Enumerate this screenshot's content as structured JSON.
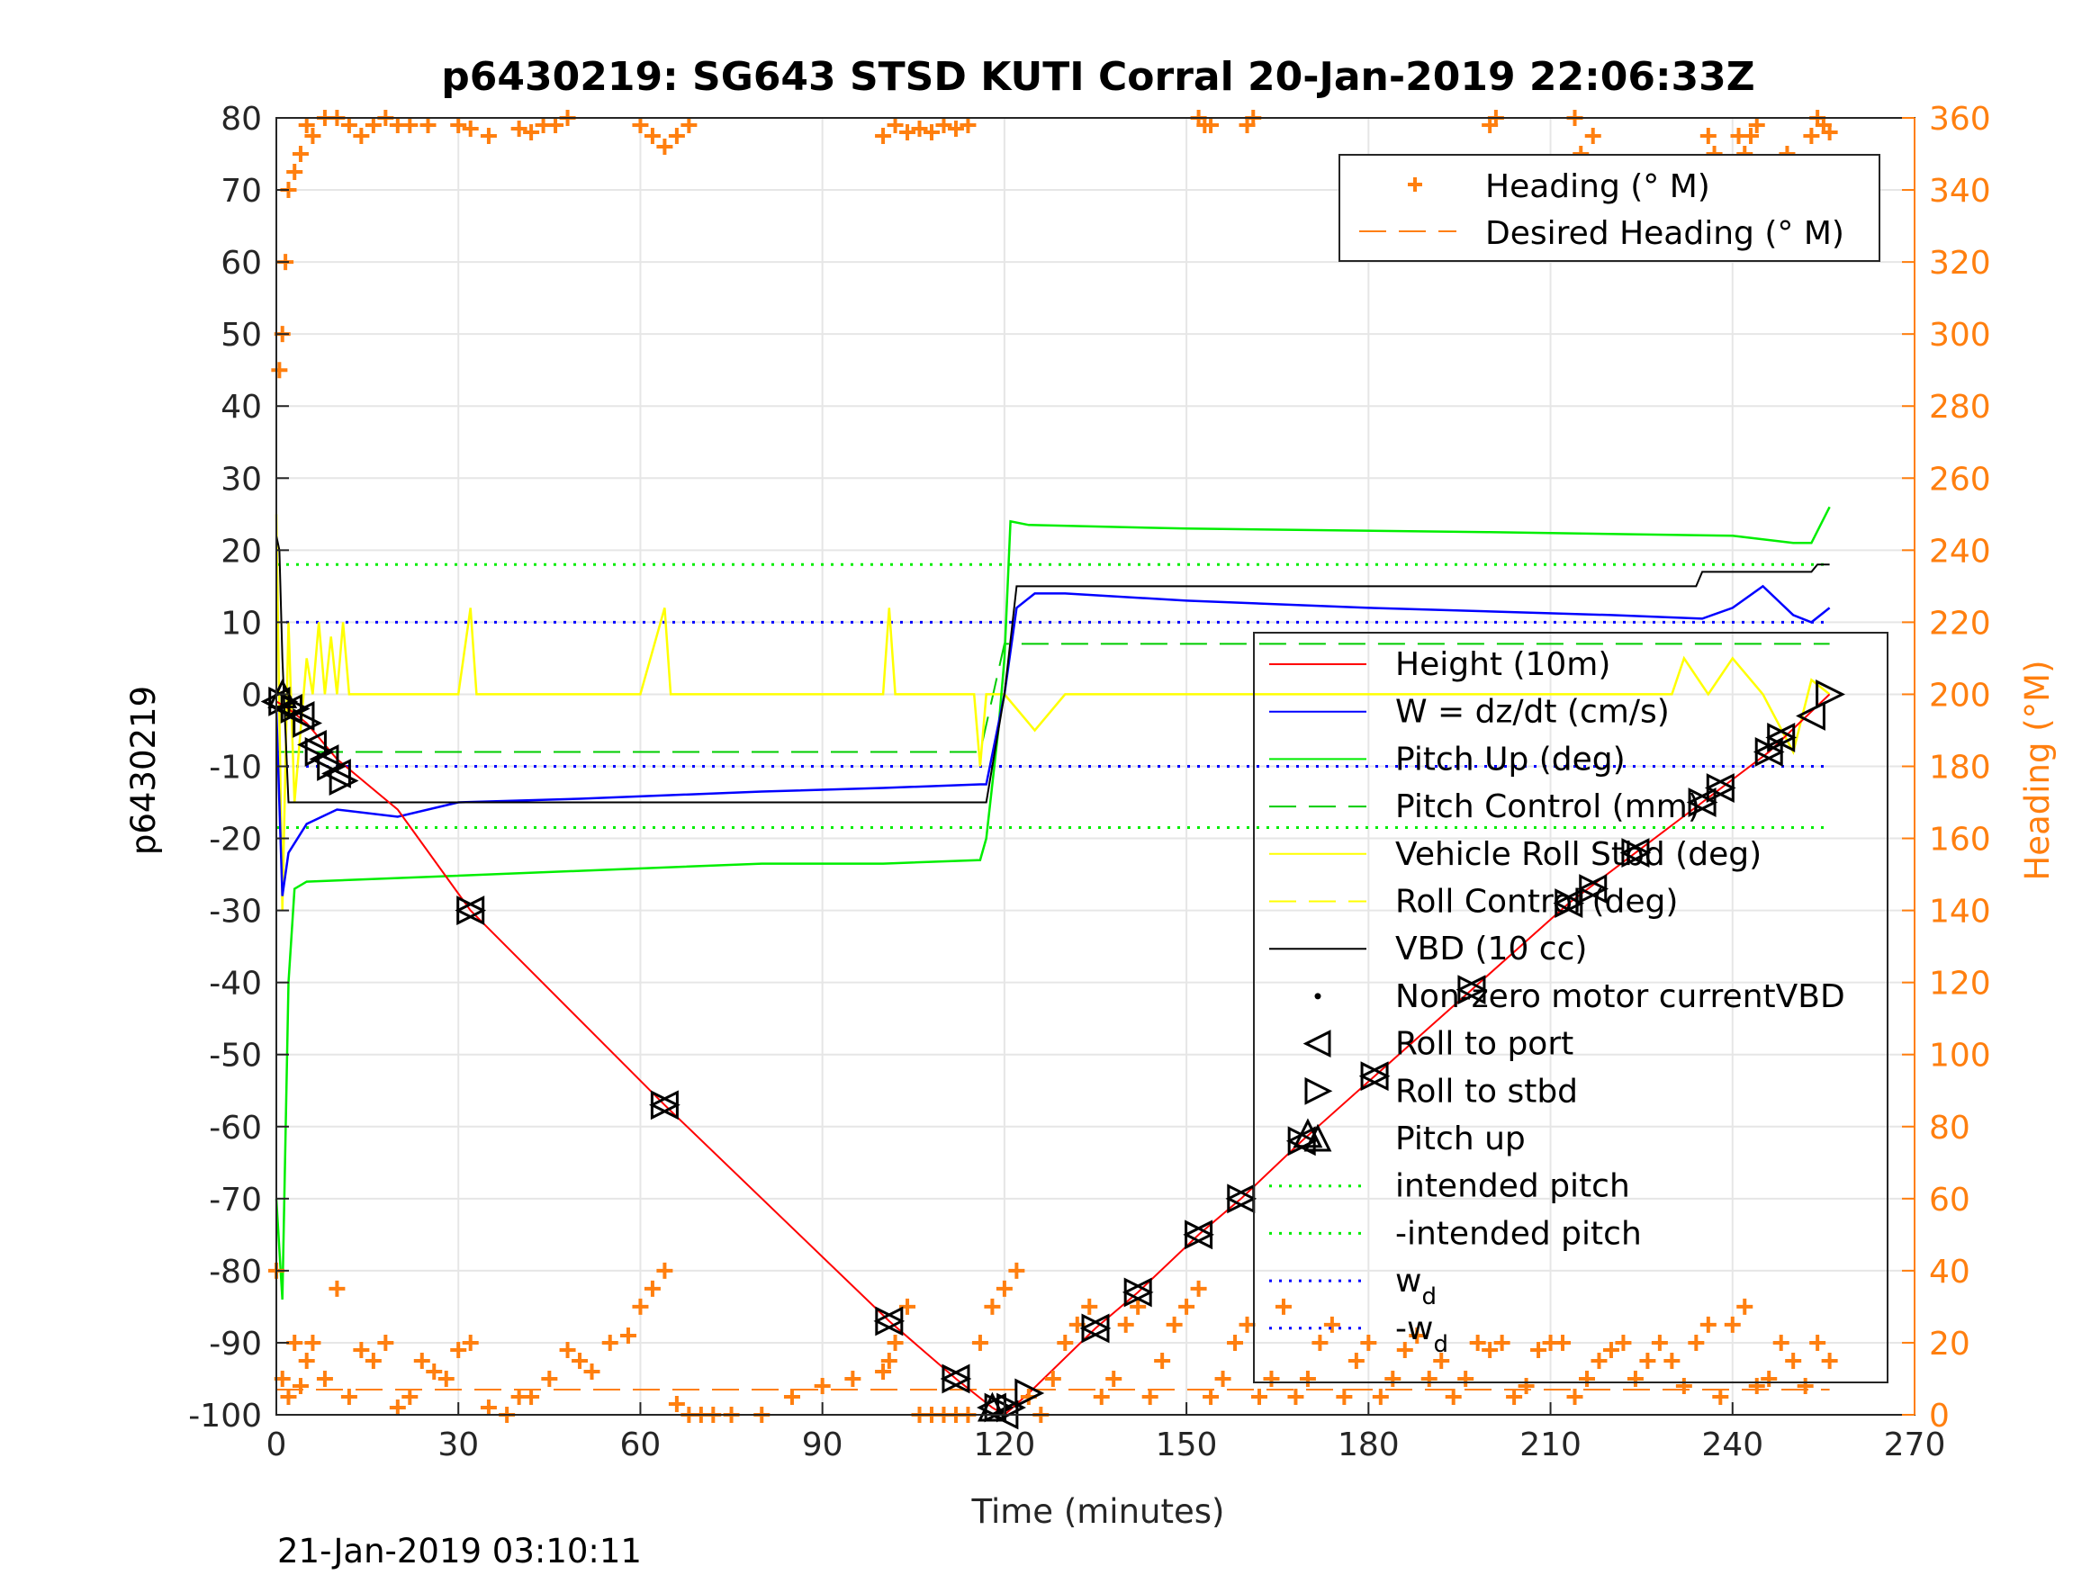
{
  "chart_data": {
    "type": "line",
    "title": "p6430219: SG643 STSD KUTI Corral 20-Jan-2019 22:06:33Z",
    "xlabel": "Time (minutes)",
    "ylabel_left": "p6430219",
    "ylabel_right": "Heading (°M)",
    "footer_timestamp": "21-Jan-2019 03:10:11",
    "xlim": [
      0,
      270
    ],
    "ylim_left": [
      -100,
      80
    ],
    "ylim_right": [
      0,
      360
    ],
    "x_ticks": [
      0,
      30,
      60,
      90,
      120,
      150,
      180,
      210,
      240,
      270
    ],
    "y_ticks_left": [
      80,
      70,
      60,
      50,
      40,
      30,
      20,
      10,
      0,
      -10,
      -20,
      -30,
      -40,
      -50,
      -60,
      -70,
      -80,
      -90,
      -100
    ],
    "y_ticks_right": [
      360,
      340,
      320,
      300,
      280,
      260,
      240,
      220,
      200,
      180,
      160,
      140,
      120,
      100,
      80,
      60,
      40,
      20,
      0
    ],
    "grid": true,
    "colors": {
      "height": "#ff0000",
      "w": "#0000ff",
      "pitch": "#00ee00",
      "pitch_control": "#00cc00",
      "roll": "#ffff00",
      "vbd": "#000000",
      "heading": "#ff7f0f",
      "intended_pitch": "#00ee00",
      "wd": "#0000ff"
    },
    "legend_heading": {
      "placement": "top-right",
      "entries": [
        "Heading (° M)",
        "Desired Heading (° M)"
      ]
    },
    "legend_main": {
      "placement": "lower-right",
      "entries": [
        "Height (10m)",
        "W = dz/dt (cm/s)",
        "Pitch Up (deg)",
        "Pitch Control (mm)",
        "Vehicle Roll Stbd (deg)",
        "Roll Control (deg)",
        "VBD (10 cc)",
        "Non-zero motor currentVBD",
        "Roll to port",
        "Roll to stbd",
        "Pitch up",
        "intended pitch",
        "-intended pitch",
        "w",
        "-w"
      ],
      "subscript_label": "d"
    },
    "series": [
      {
        "name": "Height (10m)",
        "x": [
          0,
          2,
          5,
          10,
          20,
          32,
          64,
          101,
          112,
          118,
          120,
          124,
          135,
          142,
          152,
          159,
          169,
          181,
          197,
          213,
          224,
          235,
          246,
          256
        ],
        "y": [
          -1,
          -2,
          -4,
          -9,
          -16,
          -30,
          -57,
          -87,
          -95,
          -99,
          -100,
          -97,
          -88,
          -83,
          -75,
          -70,
          -62,
          -53,
          -41,
          -29,
          -22,
          -15,
          -8,
          0
        ]
      },
      {
        "name": "W = dz/dt (cm/s)",
        "x": [
          0,
          1,
          2,
          5,
          10,
          20,
          30,
          50,
          80,
          100,
          116,
          117,
          120,
          122,
          125,
          130,
          150,
          180,
          200,
          220,
          235,
          240,
          245,
          250,
          253,
          256
        ],
        "y": [
          -2,
          -28,
          -22,
          -18,
          -16,
          -17,
          -15,
          -14.5,
          -13.5,
          -13,
          -12.5,
          -12.5,
          0,
          12,
          14,
          14,
          13,
          12,
          11.5,
          11,
          10.5,
          12,
          15,
          11,
          10,
          12
        ]
      },
      {
        "name": "Pitch Up (deg)",
        "x": [
          0,
          1,
          2,
          3,
          5,
          20,
          50,
          80,
          100,
          116,
          117,
          119,
          120,
          121,
          124,
          150,
          200,
          240,
          250,
          253,
          256
        ],
        "y": [
          -70,
          -84,
          -40,
          -27,
          -26,
          -25.5,
          -24.5,
          -23.5,
          -23.5,
          -23,
          -20,
          -5,
          5,
          24,
          23.5,
          23,
          22.5,
          22,
          21,
          21,
          26
        ]
      },
      {
        "name": "Pitch Control (mm)",
        "x": [
          0,
          116,
          120,
          124,
          256
        ],
        "y": [
          -8,
          -8,
          7,
          7,
          7
        ]
      },
      {
        "name": "Vehicle Roll Stbd (deg)",
        "x": [
          0,
          1,
          2,
          3,
          5,
          6,
          7,
          8,
          9,
          10,
          11,
          12,
          13,
          30,
          32,
          33,
          60,
          64,
          65,
          100,
          101,
          102,
          115,
          116,
          117,
          120,
          125,
          130,
          150,
          180,
          200,
          230,
          232,
          236,
          240,
          245,
          250,
          253,
          256
        ],
        "y": [
          25,
          -30,
          10,
          -15,
          5,
          0,
          10,
          0,
          8,
          0,
          10,
          0,
          0,
          0,
          12,
          0,
          0,
          12,
          0,
          0,
          12,
          0,
          0,
          -10,
          0,
          0,
          -5,
          0,
          0,
          0,
          0,
          0,
          5,
          0,
          5,
          0,
          -8,
          2,
          0
        ]
      },
      {
        "name": "VBD (10 cc)",
        "x": [
          0,
          0.5,
          1,
          2,
          116,
          117,
          120,
          122,
          234,
          235,
          253,
          254,
          256
        ],
        "y": [
          22,
          20,
          5,
          -15,
          -15,
          -15,
          0,
          15,
          15,
          17,
          17,
          18,
          18
        ]
      },
      {
        "name": "intended pitch",
        "x": [
          0,
          256
        ],
        "y": [
          18,
          18
        ]
      },
      {
        "name": "-intended pitch",
        "x": [
          0,
          256
        ],
        "y": [
          -18.5,
          -18.5
        ]
      },
      {
        "name": "wd",
        "x": [
          0,
          256
        ],
        "y": [
          10,
          10
        ]
      },
      {
        "name": "-wd",
        "x": [
          0,
          256
        ],
        "y": [
          -10,
          -10
        ]
      }
    ],
    "heading_series": {
      "name": "Heading (° M)",
      "axis": "right",
      "x": [
        0,
        1,
        2,
        3,
        4,
        5,
        6,
        8,
        10,
        12,
        14,
        16,
        18,
        20,
        22,
        24,
        26,
        28,
        30,
        32,
        35,
        38,
        40,
        42,
        45,
        48,
        50,
        52,
        55,
        58,
        60,
        62,
        64,
        66,
        68,
        70,
        72,
        75,
        80,
        85,
        90,
        95,
        100,
        101,
        102,
        104,
        106,
        108,
        110,
        112,
        114,
        116,
        118,
        120,
        122,
        124,
        126,
        128,
        130,
        132,
        134,
        136,
        138,
        140,
        142,
        144,
        146,
        148,
        150,
        152,
        154,
        156,
        158,
        160,
        162,
        164,
        166,
        168,
        170,
        172,
        174,
        176,
        178,
        180,
        182,
        184,
        186,
        188,
        190,
        192,
        194,
        196,
        198,
        200,
        202,
        204,
        206,
        208,
        210,
        212,
        214,
        216,
        218,
        220,
        222,
        224,
        226,
        228,
        230,
        232,
        234,
        236,
        238,
        240,
        242,
        244,
        246,
        248,
        250,
        252,
        254,
        256
      ],
      "y": [
        40,
        10,
        5,
        20,
        8,
        15,
        20,
        10,
        35,
        5,
        18,
        15,
        20,
        2,
        5,
        15,
        12,
        10,
        18,
        20,
        2,
        0,
        5,
        5,
        10,
        18,
        15,
        12,
        20,
        22,
        30,
        35,
        40,
        3,
        0,
        0,
        0,
        0,
        0,
        5,
        8,
        10,
        12,
        15,
        20,
        30,
        0,
        0,
        0,
        0,
        0,
        20,
        30,
        35,
        40,
        5,
        0,
        10,
        20,
        25,
        30,
        5,
        10,
        25,
        30,
        5,
        15,
        25,
        30,
        35,
        5,
        10,
        20,
        25,
        5,
        10,
        30,
        5,
        10,
        20,
        25,
        5,
        15,
        20,
        5,
        10,
        18,
        22,
        10,
        15,
        5,
        10,
        20,
        18,
        20,
        5,
        8,
        18,
        20,
        20,
        5,
        10,
        15,
        18,
        20,
        10,
        15,
        20,
        15,
        8,
        20,
        25,
        5,
        25,
        30,
        8,
        10,
        20,
        15,
        8,
        20,
        15
      ]
    },
    "heading_series_high": {
      "name": "Heading (° M)",
      "axis": "right",
      "x": [
        0.5,
        1,
        1.5,
        2,
        3,
        4,
        5,
        6,
        8,
        10,
        12,
        14,
        16,
        18,
        20,
        22,
        25,
        30,
        32,
        35,
        40,
        42,
        44,
        46,
        48,
        60,
        62,
        64,
        66,
        68,
        100,
        102,
        104,
        106,
        108,
        110,
        112,
        114,
        152,
        153,
        154,
        160,
        161,
        200,
        201,
        214,
        215,
        216,
        217,
        218,
        236,
        237,
        238,
        241,
        242,
        243,
        244,
        249,
        250,
        251,
        252,
        253,
        254,
        255,
        256
      ],
      "y": [
        290,
        300,
        320,
        340,
        345,
        350,
        358,
        355,
        360,
        360,
        358,
        355,
        358,
        360,
        358,
        358,
        358,
        358,
        357,
        355,
        357,
        356,
        358,
        358,
        360,
        358,
        355,
        352,
        355,
        358,
        355,
        358,
        356,
        357,
        356,
        358,
        357,
        358,
        360,
        358,
        358,
        358,
        360,
        358,
        360,
        360,
        350,
        340,
        355,
        345,
        355,
        350,
        345,
        355,
        350,
        355,
        358,
        350,
        340,
        345,
        335,
        355,
        360,
        358,
        356
      ]
    },
    "desired_heading": {
      "name": "Desired Heading (° M)",
      "axis": "right",
      "x": [
        0,
        256
      ],
      "y": [
        7,
        7
      ]
    },
    "markers": {
      "roll_to_port": {
        "x": [
          0,
          2,
          4,
          6,
          8,
          10,
          32,
          64,
          101,
          112,
          118,
          120,
          135,
          142,
          152,
          159,
          169,
          181,
          197,
          213,
          217,
          224,
          235,
          238,
          246,
          248,
          253
        ],
        "y": [
          -1,
          -2,
          -3,
          -7,
          -9,
          -11,
          -30,
          -57,
          -87,
          -95,
          -99,
          -100,
          -88,
          -83,
          -75,
          -70,
          -62,
          -53,
          -41,
          -29,
          -27,
          -22,
          -15,
          -13,
          -8,
          -6,
          -3
        ]
      },
      "roll_to_stbd": {
        "x": [
          1,
          3,
          5,
          7,
          9,
          11,
          32,
          64,
          101,
          112,
          119,
          121,
          124,
          135,
          142,
          152,
          159,
          169,
          181,
          197,
          213,
          217,
          224,
          235,
          238,
          246,
          248,
          256
        ],
        "y": [
          -1,
          -2,
          -4,
          -8,
          -10,
          -12,
          -30,
          -57,
          -87,
          -95,
          -99,
          -99,
          -97,
          -88,
          -83,
          -75,
          -70,
          -62,
          -53,
          -41,
          -29,
          -27,
          -22,
          -15,
          -13,
          -8,
          -6,
          0
        ]
      },
      "pitch_up": {
        "x": [
          1,
          118,
          170
        ],
        "y": [
          0,
          -99,
          -61
        ]
      }
    }
  }
}
